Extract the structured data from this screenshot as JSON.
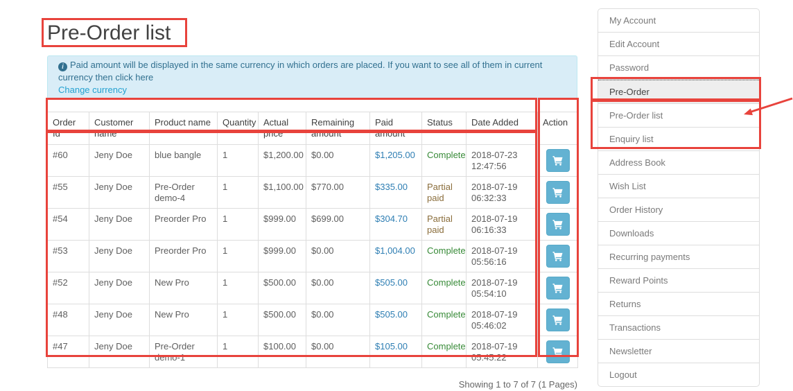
{
  "page": {
    "title": "Pre-Order list",
    "alert": {
      "text": "Paid amount will be displayed in the same currency in which orders are placed. If you want to see all of them in current currency then click here",
      "link_label": "Change currency"
    },
    "footer": "Showing 1 to 7 of 7 (1 Pages)"
  },
  "table": {
    "columns": [
      "Order Id",
      "Customer name",
      "Product name",
      "Quantity",
      "Actual price",
      "Remaining amount",
      "Paid amount",
      "Status",
      "Date Added",
      "Action"
    ],
    "rows": [
      {
        "order_id": "#60",
        "customer": "Jeny Doe",
        "product": "blue bangle",
        "quantity": "1",
        "actual_price": "$1,200.00",
        "remaining_amount": "$0.00",
        "paid_amount": "$1,205.00",
        "status": "Complete",
        "date_added": "2018-07-23 12:47:56"
      },
      {
        "order_id": "#55",
        "customer": "Jeny Doe",
        "product": "Pre-Order demo-4",
        "quantity": "1",
        "actual_price": "$1,100.00",
        "remaining_amount": "$770.00",
        "paid_amount": "$335.00",
        "status": "Partial paid",
        "date_added": "2018-07-19 06:32:33"
      },
      {
        "order_id": "#54",
        "customer": "Jeny Doe",
        "product": "Preorder Pro",
        "quantity": "1",
        "actual_price": "$999.00",
        "remaining_amount": "$699.00",
        "paid_amount": "$304.70",
        "status": "Partial paid",
        "date_added": "2018-07-19 06:16:33"
      },
      {
        "order_id": "#53",
        "customer": "Jeny Doe",
        "product": "Preorder Pro",
        "quantity": "1",
        "actual_price": "$999.00",
        "remaining_amount": "$0.00",
        "paid_amount": "$1,004.00",
        "status": "Complete",
        "date_added": "2018-07-19 05:56:16"
      },
      {
        "order_id": "#52",
        "customer": "Jeny Doe",
        "product": "New Pro",
        "quantity": "1",
        "actual_price": "$500.00",
        "remaining_amount": "$0.00",
        "paid_amount": "$505.00",
        "status": "Complete",
        "date_added": "2018-07-19 05:54:10"
      },
      {
        "order_id": "#48",
        "customer": "Jeny Doe",
        "product": "New Pro",
        "quantity": "1",
        "actual_price": "$500.00",
        "remaining_amount": "$0.00",
        "paid_amount": "$505.00",
        "status": "Complete",
        "date_added": "2018-07-19 05:46:02"
      },
      {
        "order_id": "#47",
        "customer": "Jeny Doe",
        "product": "Pre-Order demo-1",
        "quantity": "1",
        "actual_price": "$100.00",
        "remaining_amount": "$0.00",
        "paid_amount": "$105.00",
        "status": "Complete",
        "date_added": "2018-07-19 05:45:22"
      }
    ],
    "action_button_icon": "shopping-cart"
  },
  "sidebar": {
    "items": [
      "My Account",
      "Edit Account",
      "Password",
      "Pre-Order",
      "Pre-Order list",
      "Enquiry list",
      "Address Book",
      "Wish List",
      "Order History",
      "Downloads",
      "Recurring payments",
      "Reward Points",
      "Returns",
      "Transactions",
      "Newsletter",
      "Logout"
    ],
    "active_item": "Pre-Order"
  },
  "annotations": {
    "highlighted_regions": [
      "page-title",
      "table-header-row",
      "table-body",
      "action-column",
      "sidebar-pre-order",
      "sidebar-pre-order-list-and-enquiry-list"
    ],
    "arrow_points_to": "Pre-Order list"
  },
  "colors": {
    "annotation_red": "#e8433c",
    "alert_background": "#d9edf7",
    "alert_text": "#31708f",
    "link_blue": "#23a1d1",
    "paid_amount_blue": "#2e7eb3",
    "status_complete_green": "#378a37",
    "status_partial_paid_brown": "#8a6d3b",
    "cart_button_blue": "#63b2d2"
  }
}
